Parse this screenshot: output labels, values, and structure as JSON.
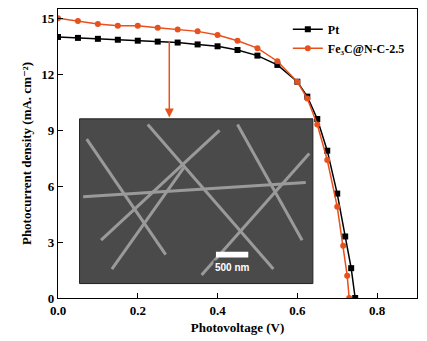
{
  "chart_data": {
    "type": "line",
    "x_label": "Photovoltage (V)",
    "y_label": "Photocurrent density (mA. cm⁻²)",
    "xlim": [
      0,
      0.9
    ],
    "ylim": [
      0,
      15.5
    ],
    "xticks": [
      {
        "value": 0,
        "label": "0.0"
      },
      {
        "value": 0.2,
        "label": "0.2"
      },
      {
        "value": 0.4,
        "label": "0.4"
      },
      {
        "value": 0.6,
        "label": "0.6"
      },
      {
        "value": 0.8,
        "label": "0.8"
      }
    ],
    "yticks": [
      0,
      3,
      6,
      9,
      12,
      15
    ],
    "grid": false,
    "legend": "top right",
    "series": [
      {
        "name": "Pt",
        "color": "#000000",
        "marker": "square",
        "line_style": "solid",
        "x": [
          0,
          0.05,
          0.1,
          0.15,
          0.2,
          0.25,
          0.3,
          0.35,
          0.4,
          0.45,
          0.5,
          0.55,
          0.6,
          0.625,
          0.65,
          0.675,
          0.7,
          0.72,
          0.735,
          0.745
        ],
        "values": [
          14.0,
          13.95,
          13.9,
          13.85,
          13.8,
          13.75,
          13.7,
          13.6,
          13.5,
          13.3,
          13.0,
          12.5,
          11.6,
          10.8,
          9.6,
          7.9,
          5.6,
          3.3,
          1.6,
          0
        ]
      },
      {
        "name": "Fe₃C@N-C-2.5",
        "color": "#e8501c",
        "marker": "circle",
        "line_style": "solid",
        "x": [
          0,
          0.05,
          0.1,
          0.15,
          0.2,
          0.25,
          0.3,
          0.35,
          0.4,
          0.45,
          0.5,
          0.55,
          0.6,
          0.625,
          0.65,
          0.675,
          0.7,
          0.715,
          0.725,
          0.73
        ],
        "values": [
          15.0,
          14.85,
          14.7,
          14.6,
          14.6,
          14.5,
          14.4,
          14.3,
          14.1,
          13.8,
          13.4,
          12.7,
          11.6,
          10.7,
          9.3,
          7.4,
          4.9,
          2.8,
          1.2,
          0
        ]
      }
    ],
    "annotations": [
      {
        "text": "500 nm"
      }
    ]
  }
}
